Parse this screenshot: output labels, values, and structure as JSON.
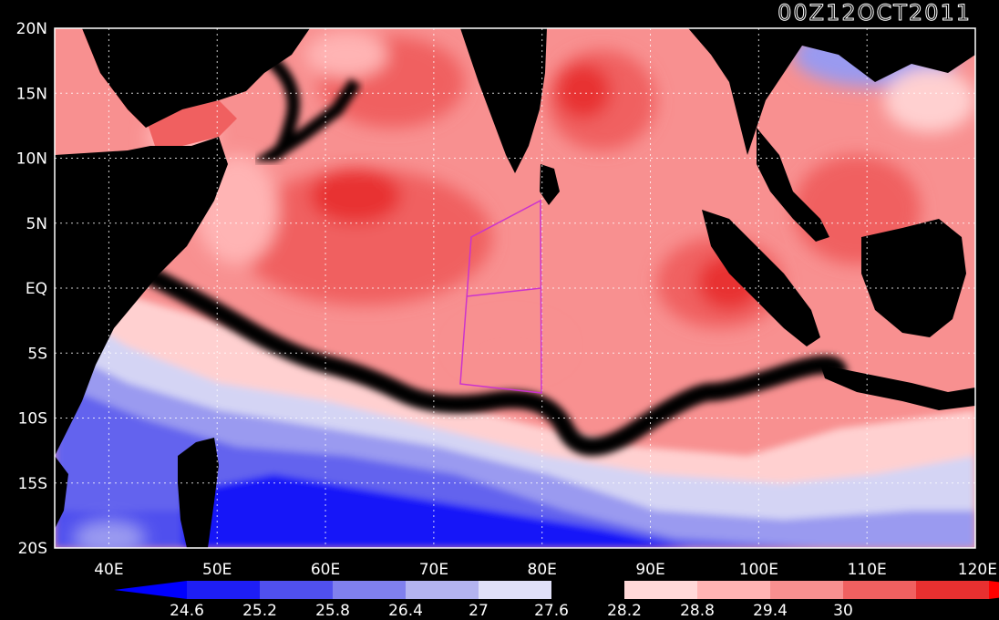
{
  "map": {
    "title": "00Z12OCT2011",
    "lat_labels": [
      "20N",
      "15N",
      "10N",
      "5N",
      "EQ",
      "5S",
      "10S",
      "15S",
      "20S"
    ],
    "lon_labels": [
      "40E",
      "50E",
      "60E",
      "70E",
      "80E",
      "90E",
      "100E",
      "110E",
      "120E"
    ],
    "lon_range": [
      35,
      120
    ],
    "lat_range": [
      -20,
      20
    ],
    "grid": "dotted"
  },
  "colorbar": {
    "labels": [
      "24.6",
      "25.2",
      "25.8",
      "26.4",
      "27",
      "27.6",
      "28.2",
      "28.8",
      "29.4",
      "30"
    ],
    "colors": [
      "#0000ff",
      "#1e1ef5",
      "#5050ee",
      "#8080ee",
      "#b4b4f0",
      "#e0e0f8",
      "#000000",
      "#ffd8d8",
      "#ffb4b4",
      "#f89090",
      "#f06060",
      "#e83030",
      "#ff0000"
    ]
  },
  "colors": {
    "land": "#000000",
    "box": "#cc33cc",
    "grid": "#ffffff"
  }
}
